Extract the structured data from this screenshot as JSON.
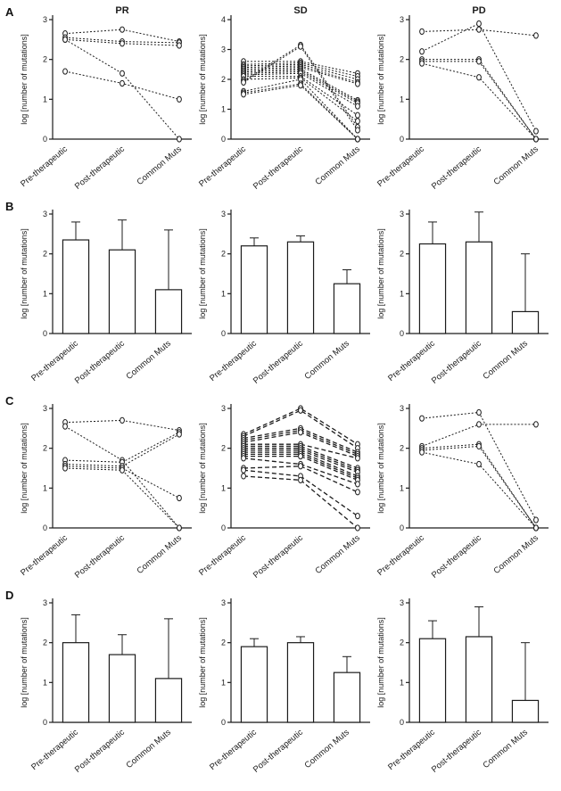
{
  "figure": {
    "panel_labels": [
      "A",
      "B",
      "C",
      "D"
    ],
    "column_titles": [
      "PR",
      "SD",
      "PD"
    ],
    "ylabel": "log [number of mutations]",
    "categories": [
      "Pre-therapeutic",
      "Post-therapeutic",
      "Common Muts"
    ],
    "ink_color": "#1c1c1c",
    "background_color": "#ffffff"
  },
  "chart_data": [
    {
      "panel": "A",
      "column": "PR",
      "type": "line",
      "title": "PR",
      "ylabel": "log [number of mutations]",
      "ymax": 3,
      "yticks": [
        0,
        1,
        2,
        3
      ],
      "categories": [
        "Pre-therapeutic",
        "Post-therapeutic",
        "Common Muts"
      ],
      "line_style": "dotted",
      "series": [
        [
          2.65,
          2.75,
          2.45
        ],
        [
          2.55,
          2.45,
          2.42
        ],
        [
          2.5,
          2.4,
          2.35
        ],
        [
          2.5,
          1.65,
          0
        ],
        [
          1.7,
          1.4,
          1.0
        ]
      ]
    },
    {
      "panel": "A",
      "column": "SD",
      "type": "line",
      "title": "SD",
      "ylabel": "log [number of mutations]",
      "ymax": 4,
      "yticks": [
        0,
        1,
        2,
        3,
        4
      ],
      "categories": [
        "Pre-therapeutic",
        "Post-therapeutic",
        "Common Muts"
      ],
      "line_style": "dotted",
      "series": [
        [
          2.6,
          2.6,
          2.2
        ],
        [
          2.5,
          2.55,
          2.1
        ],
        [
          2.45,
          2.5,
          2.0
        ],
        [
          2.4,
          2.45,
          1.9
        ],
        [
          2.35,
          2.4,
          1.85
        ],
        [
          2.3,
          2.35,
          1.3
        ],
        [
          2.25,
          2.3,
          1.25
        ],
        [
          2.2,
          2.25,
          1.2
        ],
        [
          2.15,
          2.2,
          1.1
        ],
        [
          2.1,
          2.1,
          0.8
        ],
        [
          2.0,
          2.05,
          0.6
        ],
        [
          1.95,
          3.15,
          0.4
        ],
        [
          1.9,
          3.1,
          0.3
        ],
        [
          1.6,
          2.0,
          0
        ],
        [
          1.55,
          1.85,
          0
        ],
        [
          1.5,
          1.8,
          0
        ]
      ]
    },
    {
      "panel": "A",
      "column": "PD",
      "type": "line",
      "title": "PD",
      "ylabel": "log [number of mutations]",
      "ymax": 3,
      "yticks": [
        0,
        1,
        2,
        3
      ],
      "categories": [
        "Pre-therapeutic",
        "Post-therapeutic",
        "Common Muts"
      ],
      "line_style": "dotted",
      "series": [
        [
          2.7,
          2.75,
          2.6
        ],
        [
          2.2,
          2.9,
          0.2
        ],
        [
          2.0,
          2.0,
          0
        ],
        [
          1.95,
          1.95,
          0
        ],
        [
          1.9,
          1.55,
          0
        ]
      ]
    },
    {
      "panel": "B",
      "column": "PR",
      "type": "bar",
      "title": "",
      "ylabel": "log [number of mutations]",
      "ymax": 3,
      "yticks": [
        0,
        1,
        2,
        3
      ],
      "categories": [
        "Pre-therapeutic",
        "Post-therapeutic",
        "Common Muts"
      ],
      "values": [
        2.35,
        2.1,
        1.1
      ],
      "errors": [
        0.45,
        0.75,
        1.5
      ]
    },
    {
      "panel": "B",
      "column": "SD",
      "type": "bar",
      "title": "",
      "ylabel": "log [number of mutations]",
      "ymax": 3,
      "yticks": [
        0,
        1,
        2,
        3
      ],
      "categories": [
        "Pre-therapeutic",
        "Post-therapeutic",
        "Common Muts"
      ],
      "values": [
        2.2,
        2.3,
        1.25
      ],
      "errors": [
        0.2,
        0.15,
        0.35
      ]
    },
    {
      "panel": "B",
      "column": "PD",
      "type": "bar",
      "title": "",
      "ylabel": "log [number of mutations]",
      "ymax": 3,
      "yticks": [
        0,
        1,
        2,
        3
      ],
      "categories": [
        "Pre-therapeutic",
        "Post-therapeutic",
        "Common Muts"
      ],
      "values": [
        2.25,
        2.3,
        0.55
      ],
      "errors": [
        0.55,
        0.75,
        1.45
      ]
    },
    {
      "panel": "C",
      "column": "PR",
      "type": "line",
      "title": "",
      "ylabel": "log [number of mutations]",
      "ymax": 3,
      "yticks": [
        0,
        1,
        2,
        3
      ],
      "categories": [
        "Pre-therapeutic",
        "Post-therapeutic",
        "Common Muts"
      ],
      "line_style": "dotted",
      "series": [
        [
          2.65,
          2.7,
          2.45
        ],
        [
          2.55,
          1.7,
          0
        ],
        [
          1.7,
          1.65,
          2.4
        ],
        [
          1.6,
          1.55,
          2.35
        ],
        [
          1.55,
          1.5,
          0.75
        ],
        [
          1.5,
          1.45,
          0
        ]
      ]
    },
    {
      "panel": "C",
      "column": "SD",
      "type": "line",
      "title": "",
      "ylabel": "log [number of mutations]",
      "ymax": 3,
      "yticks": [
        0,
        1,
        2,
        3
      ],
      "categories": [
        "Pre-therapeutic",
        "Post-therapeutic",
        "Common Muts"
      ],
      "line_style": "dashed",
      "series": [
        [
          2.35,
          3.0,
          2.1
        ],
        [
          2.3,
          2.95,
          2.0
        ],
        [
          2.25,
          2.5,
          1.9
        ],
        [
          2.2,
          2.45,
          1.85
        ],
        [
          2.15,
          2.4,
          1.8
        ],
        [
          2.1,
          2.1,
          1.75
        ],
        [
          2.05,
          2.05,
          1.5
        ],
        [
          2.0,
          2.0,
          1.45
        ],
        [
          1.95,
          1.95,
          1.4
        ],
        [
          1.9,
          1.9,
          1.3
        ],
        [
          1.85,
          1.85,
          1.25
        ],
        [
          1.8,
          1.8,
          1.2
        ],
        [
          1.75,
          1.6,
          1.1
        ],
        [
          1.5,
          1.55,
          0.9
        ],
        [
          1.45,
          1.3,
          0.3
        ],
        [
          1.3,
          1.2,
          0
        ]
      ]
    },
    {
      "panel": "C",
      "column": "PD",
      "type": "line",
      "title": "",
      "ylabel": "log [number of mutations]",
      "ymax": 3,
      "yticks": [
        0,
        1,
        2,
        3
      ],
      "categories": [
        "Pre-therapeutic",
        "Post-therapeutic",
        "Common Muts"
      ],
      "line_style": "dotted",
      "series": [
        [
          2.75,
          2.9,
          0.2
        ],
        [
          2.05,
          2.6,
          2.6
        ],
        [
          2.0,
          2.1,
          0
        ],
        [
          1.95,
          2.05,
          0
        ],
        [
          1.9,
          1.6,
          0
        ]
      ]
    },
    {
      "panel": "D",
      "column": "PR",
      "type": "bar",
      "title": "",
      "ylabel": "log [number of mutations]",
      "ymax": 3,
      "yticks": [
        0,
        1,
        2,
        3
      ],
      "categories": [
        "Pre-therapeutic",
        "Post-therapeutic",
        "Common Muts"
      ],
      "values": [
        2.0,
        1.7,
        1.1
      ],
      "errors": [
        0.7,
        0.5,
        1.5
      ]
    },
    {
      "panel": "D",
      "column": "SD",
      "type": "bar",
      "title": "",
      "ylabel": "log [number of mutations]",
      "ymax": 3,
      "yticks": [
        0,
        1,
        2,
        3
      ],
      "categories": [
        "Pre-therapeutic",
        "Post-therapeutic",
        "Common Muts"
      ],
      "values": [
        1.9,
        2.0,
        1.25
      ],
      "errors": [
        0.2,
        0.15,
        0.4
      ]
    },
    {
      "panel": "D",
      "column": "PD",
      "type": "bar",
      "title": "",
      "ylabel": "log [number of mutations]",
      "ymax": 3,
      "yticks": [
        0,
        1,
        2,
        3
      ],
      "categories": [
        "Pre-therapeutic",
        "Post-therapeutic",
        "Common Muts"
      ],
      "values": [
        2.1,
        2.15,
        0.55
      ],
      "errors": [
        0.45,
        0.75,
        1.45
      ]
    }
  ]
}
